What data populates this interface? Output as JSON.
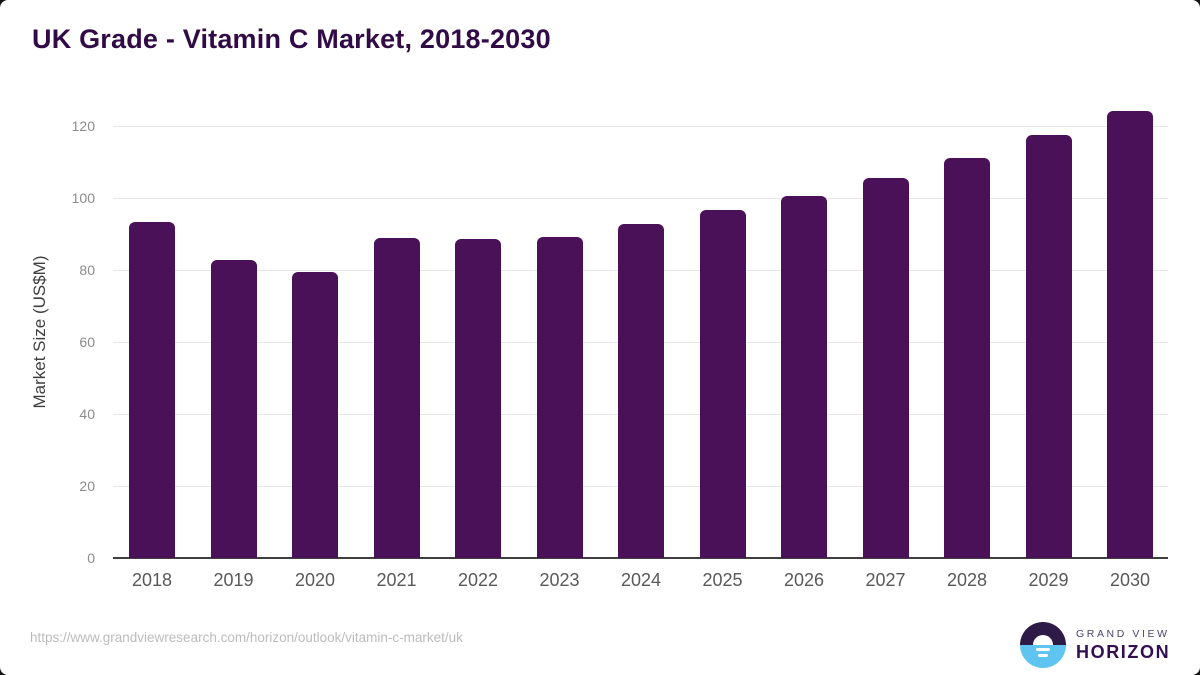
{
  "title": "UK Grade - Vitamin C Market, 2018-2030",
  "chart_data": {
    "type": "bar",
    "title": "UK Grade - Vitamin C Market, 2018-2030",
    "categories": [
      "2018",
      "2019",
      "2020",
      "2021",
      "2022",
      "2023",
      "2024",
      "2025",
      "2026",
      "2027",
      "2028",
      "2029",
      "2030"
    ],
    "values": [
      93.4,
      82.8,
      79.4,
      88.9,
      88.6,
      89.2,
      92.8,
      96.7,
      100.8,
      105.8,
      111.3,
      117.5,
      124.4
    ],
    "xlabel": "",
    "ylabel": "Market Size (US$M)",
    "ylim": [
      0,
      130
    ],
    "yticks": [
      0,
      20,
      40,
      60,
      80,
      100,
      120
    ],
    "grid": true,
    "legend": false,
    "bar_color": "#4a1158",
    "gridline_color": "#e7e7e7",
    "axis_line_color": "#3f3f3f"
  },
  "footer": {
    "source_url": "https://www.grandviewresearch.com/horizon/outlook/vitamin-c-market/uk",
    "logo": {
      "brand_top": "GRAND VIEW",
      "brand_bottom": "HORIZON"
    }
  },
  "colors": {
    "title": "#310b45",
    "logo_purple": "#2d1a47",
    "logo_blue": "#5fc4f0"
  }
}
